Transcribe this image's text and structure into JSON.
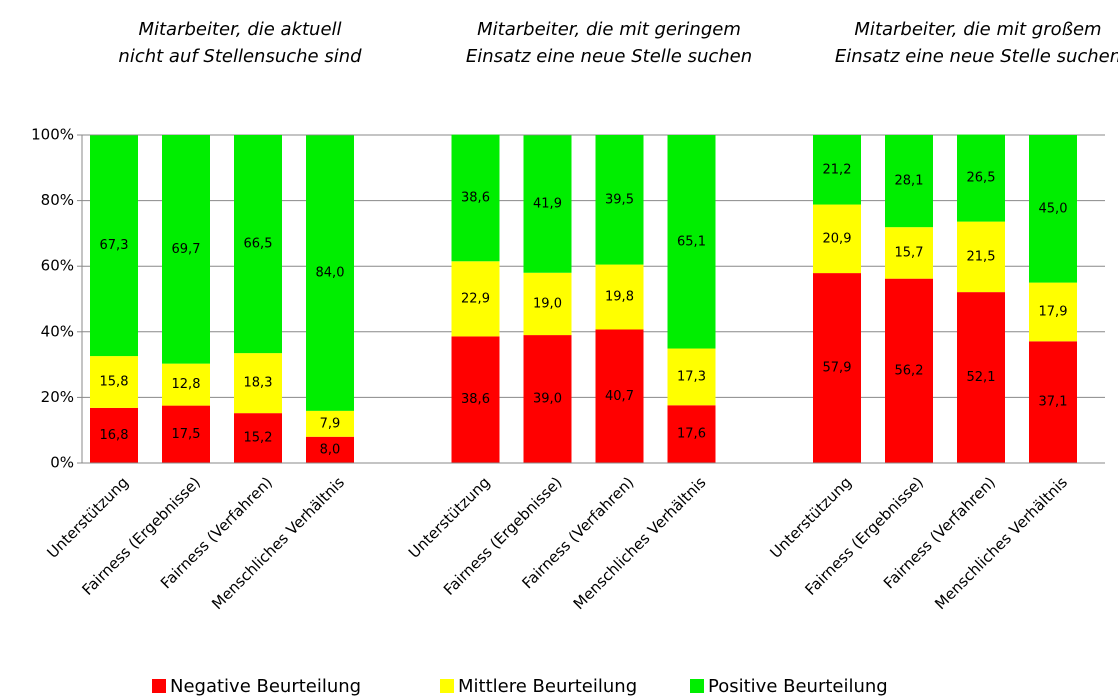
{
  "chart_data": {
    "type": "bar",
    "stacked": true,
    "ylim": [
      0,
      100
    ],
    "yticks": [
      {
        "value": 0,
        "label": "0%"
      },
      {
        "value": 20,
        "label": "20%"
      },
      {
        "value": 40,
        "label": "40%"
      },
      {
        "value": 60,
        "label": "60%"
      },
      {
        "value": 80,
        "label": "80%"
      },
      {
        "value": 100,
        "label": "100%"
      }
    ],
    "grid": true,
    "groups": [
      {
        "title": [
          "Mitarbeiter, die aktuell",
          "nicht auf Stellensuche sind"
        ],
        "categories": [
          "Unterstützung",
          "Fairness (Ergebnisse)",
          "Fairness (Verfahren)",
          "Menschliches Verhältnis"
        ]
      },
      {
        "title": [
          "Mitarbeiter, die mit geringem",
          "Einsatz eine neue Stelle suchen"
        ],
        "categories": [
          "Unterstützung",
          "Fairness (Ergebnisse)",
          "Fairness (Verfahren)",
          "Menschliches Verhältnis"
        ]
      },
      {
        "title": [
          "Mitarbeiter, die mit großem",
          "Einsatz eine neue Stelle suchen"
        ],
        "categories": [
          "Unterstützung",
          "Fairness (Ergebnisse)",
          "Fairness (Verfahren)",
          "Menschliches Verhältnis"
        ]
      }
    ],
    "series": [
      {
        "name": "Negative Beurteilung",
        "color": "#ff0000",
        "values": [
          16.8,
          17.5,
          15.2,
          8.0,
          38.6,
          39.0,
          40.7,
          17.6,
          57.9,
          56.2,
          52.1,
          37.1
        ],
        "value_labels": [
          "16,8",
          "17,5",
          "15,2",
          "8,0",
          "38,6",
          "39,0",
          "40,7",
          "17,6",
          "57,9",
          "56,2",
          "52,1",
          "37,1"
        ]
      },
      {
        "name": "Mittlere Beurteilung",
        "color": "#ffff00",
        "values": [
          15.8,
          12.8,
          18.3,
          7.9,
          22.9,
          19.0,
          19.8,
          17.3,
          20.9,
          15.7,
          21.5,
          17.9
        ],
        "value_labels": [
          "15,8",
          "12,8",
          "18,3",
          "7,9",
          "22,9",
          "19,0",
          "19,8",
          "17,3",
          "20,9",
          "15,7",
          "21,5",
          "17,9"
        ]
      },
      {
        "name": "Positive Beurteilung",
        "color": "#00ee00",
        "values": [
          67.3,
          69.7,
          66.5,
          84.0,
          38.6,
          41.9,
          39.5,
          65.1,
          21.2,
          28.1,
          26.5,
          45.0
        ],
        "value_labels": [
          "67,3",
          "69,7",
          "66,5",
          "84,0",
          "38,6",
          "41,9",
          "39,5",
          "65,1",
          "21,2",
          "28,1",
          "26,5",
          "45,0"
        ]
      }
    ]
  }
}
